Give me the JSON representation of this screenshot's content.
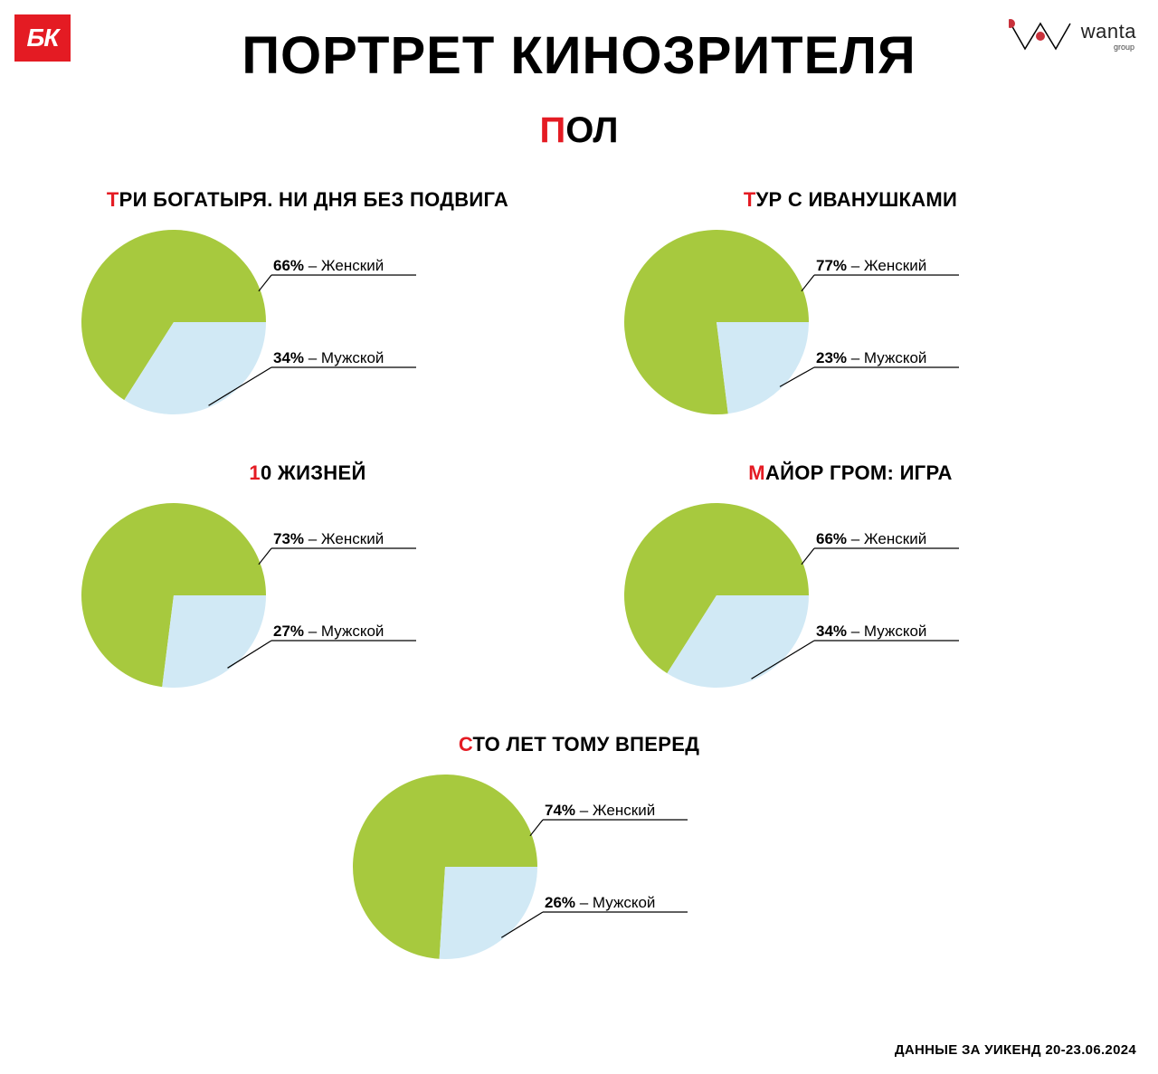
{
  "logos": {
    "bk_text": "БК",
    "wanta_main": "wanta",
    "wanta_sub": "group"
  },
  "title": "ПОРТРЕТ КИНОЗРИТЕЛЯ",
  "subtitle_first": "П",
  "subtitle_rest": "ОЛ",
  "footer": "ДАННЫЕ ЗА УИКЕНД 20-23.06.2024",
  "pie_style": {
    "radius": 102,
    "colors": {
      "female": "#a7c93e",
      "male": "#d1e9f5"
    },
    "label_fontsize": 17,
    "title_fontsize": 22,
    "background_color": "#ffffff",
    "leader_color": "#000000"
  },
  "legend_terms": {
    "female": "Женский",
    "male": "Мужской"
  },
  "charts": [
    {
      "title_first": "Т",
      "title_rest": "РИ БОГАТЫРЯ. НИ ДНЯ БЕЗ ПОДВИГА",
      "female": 66,
      "male": 34
    },
    {
      "title_first": "Т",
      "title_rest": "УР С ИВАНУШКАМИ",
      "female": 77,
      "male": 23
    },
    {
      "title_first": "1",
      "title_rest": "0 ЖИЗНЕЙ",
      "female": 73,
      "male": 27
    },
    {
      "title_first": "М",
      "title_rest": "АЙОР ГРОМ: ИГРА",
      "female": 66,
      "male": 34
    },
    {
      "title_first": "С",
      "title_rest": "ТО ЛЕТ ТОМУ ВПЕРЕД",
      "female": 74,
      "male": 26
    }
  ]
}
